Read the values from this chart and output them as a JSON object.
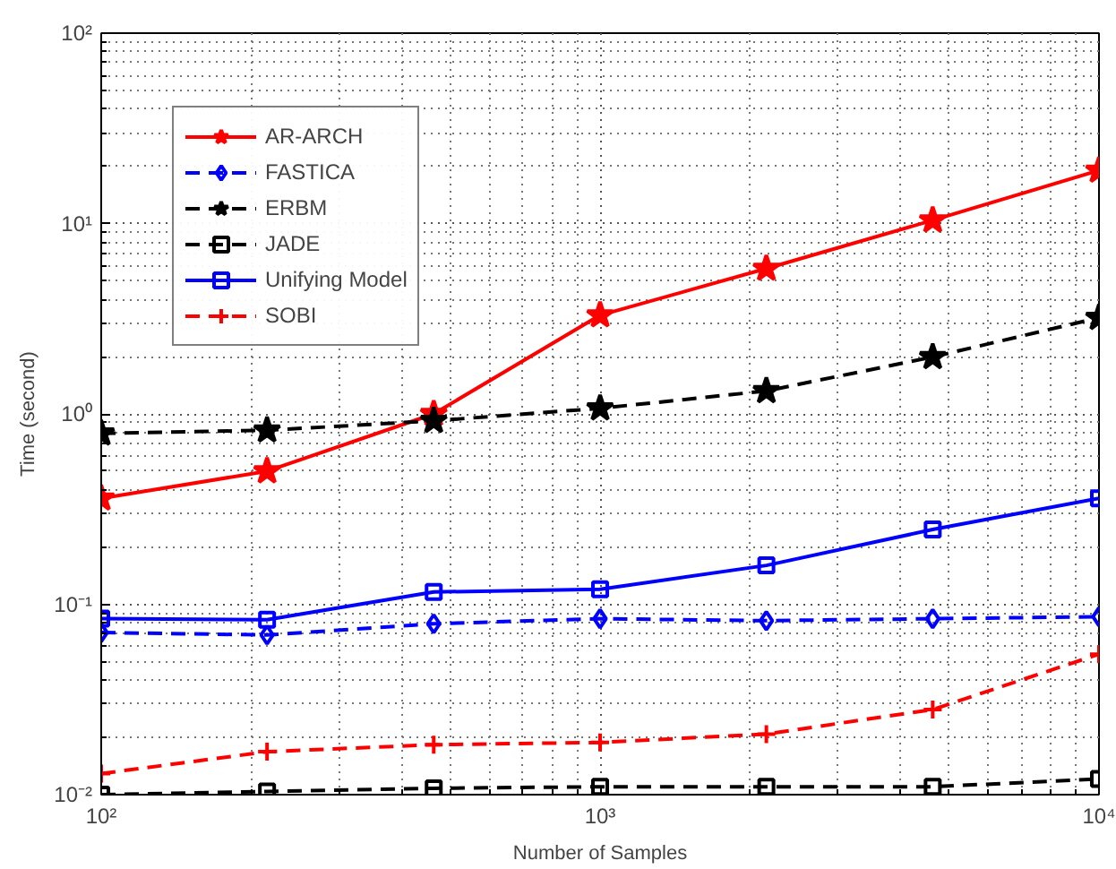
{
  "chart_data": {
    "type": "line",
    "xlabel": "Number of Samples",
    "ylabel": "Time (second)",
    "log": "xy",
    "grid": true,
    "legend": "top left",
    "x": [
      100,
      215,
      464,
      1000,
      2154,
      4642,
      10000
    ],
    "xlim": [
      100,
      10000
    ],
    "ylim": [
      0.01,
      100
    ],
    "xticks": [
      {
        "value": 100,
        "label": "10²"
      },
      {
        "value": 1000,
        "label": "10³"
      },
      {
        "value": 10000,
        "label": "10⁴"
      }
    ],
    "yticks": [
      {
        "value": 0.01,
        "label": "10⁻²"
      },
      {
        "value": 0.1,
        "label": "10⁻¹"
      },
      {
        "value": 1,
        "label": "10⁰"
      },
      {
        "value": 10,
        "label": "10¹"
      },
      {
        "value": 100,
        "label": "10²"
      }
    ],
    "series": [
      {
        "name": "AR-ARCH",
        "color": "#ff0000",
        "marker": "star",
        "line_style": "solid",
        "values": [
          0.36,
          0.5,
          1.0,
          3.3,
          5.8,
          10.4,
          19
        ]
      },
      {
        "name": "FASTICA",
        "color": "#0000ff",
        "marker": "diamond",
        "line_style": "dashed",
        "values": [
          0.071,
          0.069,
          0.079,
          0.084,
          0.082,
          0.084,
          0.086
        ]
      },
      {
        "name": "ERBM",
        "color": "#000000",
        "marker": "star",
        "line_style": "dashed",
        "values": [
          0.79,
          0.82,
          0.92,
          1.07,
          1.32,
          1.99,
          3.2
        ]
      },
      {
        "name": "JADE",
        "color": "#000000",
        "marker": "square",
        "line_style": "dashed",
        "values": [
          0.01,
          0.0104,
          0.0108,
          0.011,
          0.011,
          0.011,
          0.0121
        ]
      },
      {
        "name": "Unifying Model",
        "color": "#0000ff",
        "marker": "square",
        "line_style": "solid",
        "values": [
          0.084,
          0.083,
          0.116,
          0.12,
          0.16,
          0.247,
          0.36
        ]
      },
      {
        "name": "SOBI",
        "color": "#ff0000",
        "marker": "cross",
        "line_style": "dashed",
        "values": [
          0.0129,
          0.0168,
          0.0183,
          0.0188,
          0.0208,
          0.028,
          0.0547
        ]
      }
    ]
  }
}
